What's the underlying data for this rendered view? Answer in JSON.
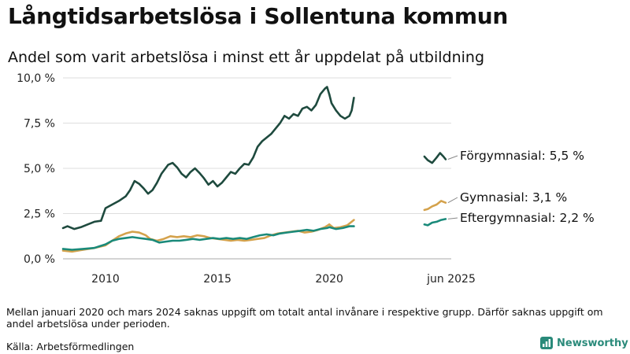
{
  "title": "Långtidsarbetslösa i Sollentuna kommun",
  "subtitle": "Andel som varit arbetslösa i minst ett år uppdelat på utbildning",
  "note": "Mellan januari 2020 och mars 2024 saknas uppgift om totalt antal invånare i respektive grupp. Därför saknas uppgift om andel arbetslösa under perioden.",
  "source": "Källa: Arbetsförmedlingen",
  "brand": "Newsworthy",
  "chart_data": {
    "type": "line",
    "title": "Långtidsarbetslösa i Sollentuna kommun",
    "subtitle": "Andel som varit arbetslösa i minst ett år uppdelat på utbildning",
    "xlabel": "",
    "ylabel": "",
    "x_ticks": [
      {
        "label": "2010",
        "x": 2010.0
      },
      {
        "label": "2015",
        "x": 2015.0
      },
      {
        "label": "2020",
        "x": 2020.0
      },
      {
        "label": "jun 2025",
        "x": 2025.45
      }
    ],
    "xlim": [
      2008.1,
      2025.45
    ],
    "ylim": [
      0,
      10
    ],
    "y_ticks": [
      {
        "label": "0,0 %",
        "value": 0
      },
      {
        "label": "2,5 %",
        "value": 2.5
      },
      {
        "label": "5,0 %",
        "value": 5
      },
      {
        "label": "7,5 %",
        "value": 7.5
      },
      {
        "label": "10,0 %",
        "value": 10
      }
    ],
    "grid": true,
    "series": [
      {
        "name": "Förgymnasial: 5,5 %",
        "color": "#1e4a3e",
        "segments": [
          [
            [
              2008.1,
              1.7
            ],
            [
              2008.3,
              1.8
            ],
            [
              2008.6,
              1.65
            ],
            [
              2008.9,
              1.75
            ],
            [
              2009.2,
              1.9
            ],
            [
              2009.5,
              2.05
            ],
            [
              2009.8,
              2.1
            ],
            [
              2010.0,
              2.8
            ],
            [
              2010.3,
              3.0
            ],
            [
              2010.6,
              3.2
            ],
            [
              2010.9,
              3.45
            ],
            [
              2011.1,
              3.8
            ],
            [
              2011.3,
              4.3
            ],
            [
              2011.5,
              4.15
            ],
            [
              2011.7,
              3.9
            ],
            [
              2011.9,
              3.6
            ],
            [
              2012.1,
              3.8
            ],
            [
              2012.3,
              4.2
            ],
            [
              2012.5,
              4.7
            ],
            [
              2012.8,
              5.2
            ],
            [
              2013.0,
              5.3
            ],
            [
              2013.2,
              5.05
            ],
            [
              2013.4,
              4.7
            ],
            [
              2013.6,
              4.5
            ],
            [
              2013.8,
              4.8
            ],
            [
              2014.0,
              5.0
            ],
            [
              2014.2,
              4.75
            ],
            [
              2014.4,
              4.45
            ],
            [
              2014.6,
              4.1
            ],
            [
              2014.8,
              4.3
            ],
            [
              2015.0,
              4.0
            ],
            [
              2015.2,
              4.2
            ],
            [
              2015.4,
              4.5
            ],
            [
              2015.6,
              4.8
            ],
            [
              2015.8,
              4.7
            ],
            [
              2016.0,
              5.0
            ],
            [
              2016.2,
              5.25
            ],
            [
              2016.4,
              5.2
            ],
            [
              2016.6,
              5.6
            ],
            [
              2016.8,
              6.2
            ],
            [
              2017.0,
              6.5
            ],
            [
              2017.2,
              6.7
            ],
            [
              2017.4,
              6.9
            ],
            [
              2017.6,
              7.2
            ],
            [
              2017.8,
              7.5
            ],
            [
              2018.0,
              7.9
            ],
            [
              2018.2,
              7.75
            ],
            [
              2018.4,
              8.0
            ],
            [
              2018.6,
              7.9
            ],
            [
              2018.8,
              8.3
            ],
            [
              2019.0,
              8.4
            ],
            [
              2019.2,
              8.2
            ],
            [
              2019.4,
              8.5
            ],
            [
              2019.6,
              9.1
            ],
            [
              2019.8,
              9.4
            ],
            [
              2019.9,
              9.5
            ],
            [
              2020.0,
              9.1
            ]
          ],
          [
            [
              2020.0,
              9.1
            ],
            [
              2020.1,
              8.6
            ],
            [
              2020.3,
              8.2
            ],
            [
              2020.5,
              7.9
            ],
            [
              2020.7,
              7.75
            ],
            [
              2020.9,
              7.9
            ],
            [
              2021.0,
              8.2
            ],
            [
              2021.1,
              8.9
            ]
          ],
          [
            [
              2024.25,
              5.65
            ],
            [
              2024.4,
              5.45
            ],
            [
              2024.6,
              5.3
            ],
            [
              2024.8,
              5.6
            ],
            [
              2024.95,
              5.85
            ],
            [
              2025.1,
              5.65
            ],
            [
              2025.2,
              5.5
            ]
          ]
        ]
      },
      {
        "name": "Gymnasial: 3,1 %",
        "color": "#d4a24c",
        "segments": [
          [
            [
              2008.1,
              0.45
            ],
            [
              2008.5,
              0.4
            ],
            [
              2009.0,
              0.5
            ],
            [
              2009.5,
              0.6
            ],
            [
              2010.0,
              0.75
            ],
            [
              2010.3,
              1.0
            ],
            [
              2010.6,
              1.25
            ],
            [
              2010.9,
              1.4
            ],
            [
              2011.2,
              1.5
            ],
            [
              2011.5,
              1.45
            ],
            [
              2011.8,
              1.3
            ],
            [
              2012.0,
              1.1
            ],
            [
              2012.3,
              1.0
            ],
            [
              2012.6,
              1.1
            ],
            [
              2012.9,
              1.25
            ],
            [
              2013.2,
              1.2
            ],
            [
              2013.5,
              1.25
            ],
            [
              2013.8,
              1.2
            ],
            [
              2014.1,
              1.3
            ],
            [
              2014.4,
              1.25
            ],
            [
              2014.7,
              1.15
            ],
            [
              2015.0,
              1.1
            ],
            [
              2015.3,
              1.05
            ],
            [
              2015.6,
              1.0
            ],
            [
              2015.9,
              1.05
            ],
            [
              2016.2,
              1.0
            ],
            [
              2016.5,
              1.05
            ],
            [
              2016.8,
              1.1
            ],
            [
              2017.1,
              1.15
            ],
            [
              2017.4,
              1.3
            ],
            [
              2017.7,
              1.4
            ],
            [
              2018.0,
              1.45
            ],
            [
              2018.3,
              1.5
            ],
            [
              2018.6,
              1.55
            ],
            [
              2018.9,
              1.45
            ],
            [
              2019.2,
              1.5
            ],
            [
              2019.5,
              1.6
            ],
            [
              2019.8,
              1.75
            ],
            [
              2020.0,
              1.9
            ]
          ],
          [
            [
              2020.0,
              1.9
            ],
            [
              2020.2,
              1.7
            ],
            [
              2020.5,
              1.75
            ],
            [
              2020.8,
              1.85
            ],
            [
              2021.1,
              2.15
            ]
          ],
          [
            [
              2024.25,
              2.7
            ],
            [
              2024.4,
              2.75
            ],
            [
              2024.6,
              2.9
            ],
            [
              2024.8,
              3.0
            ],
            [
              2025.0,
              3.2
            ],
            [
              2025.2,
              3.1
            ]
          ]
        ]
      },
      {
        "name": "Eftergymnasial: 2,2 %",
        "color": "#1a8a7a",
        "segments": [
          [
            [
              2008.1,
              0.55
            ],
            [
              2008.5,
              0.5
            ],
            [
              2009.0,
              0.55
            ],
            [
              2009.5,
              0.6
            ],
            [
              2010.0,
              0.8
            ],
            [
              2010.3,
              1.0
            ],
            [
              2010.6,
              1.1
            ],
            [
              2010.9,
              1.15
            ],
            [
              2011.2,
              1.2
            ],
            [
              2011.5,
              1.15
            ],
            [
              2011.8,
              1.1
            ],
            [
              2012.1,
              1.05
            ],
            [
              2012.4,
              0.9
            ],
            [
              2012.7,
              0.95
            ],
            [
              2013.0,
              1.0
            ],
            [
              2013.3,
              1.0
            ],
            [
              2013.6,
              1.05
            ],
            [
              2013.9,
              1.1
            ],
            [
              2014.2,
              1.05
            ],
            [
              2014.5,
              1.1
            ],
            [
              2014.8,
              1.15
            ],
            [
              2015.1,
              1.1
            ],
            [
              2015.4,
              1.15
            ],
            [
              2015.7,
              1.1
            ],
            [
              2016.0,
              1.15
            ],
            [
              2016.3,
              1.1
            ],
            [
              2016.6,
              1.2
            ],
            [
              2016.9,
              1.3
            ],
            [
              2017.2,
              1.35
            ],
            [
              2017.5,
              1.3
            ],
            [
              2017.8,
              1.4
            ],
            [
              2018.1,
              1.45
            ],
            [
              2018.4,
              1.5
            ],
            [
              2018.7,
              1.55
            ],
            [
              2019.0,
              1.6
            ],
            [
              2019.3,
              1.55
            ],
            [
              2019.6,
              1.65
            ],
            [
              2019.9,
              1.7
            ],
            [
              2020.0,
              1.75
            ]
          ],
          [
            [
              2020.0,
              1.75
            ],
            [
              2020.3,
              1.65
            ],
            [
              2020.6,
              1.7
            ],
            [
              2020.9,
              1.8
            ],
            [
              2021.1,
              1.8
            ]
          ],
          [
            [
              2024.25,
              1.9
            ],
            [
              2024.4,
              1.85
            ],
            [
              2024.6,
              2.0
            ],
            [
              2024.8,
              2.05
            ],
            [
              2025.0,
              2.15
            ],
            [
              2025.2,
              2.2
            ]
          ]
        ]
      }
    ]
  }
}
